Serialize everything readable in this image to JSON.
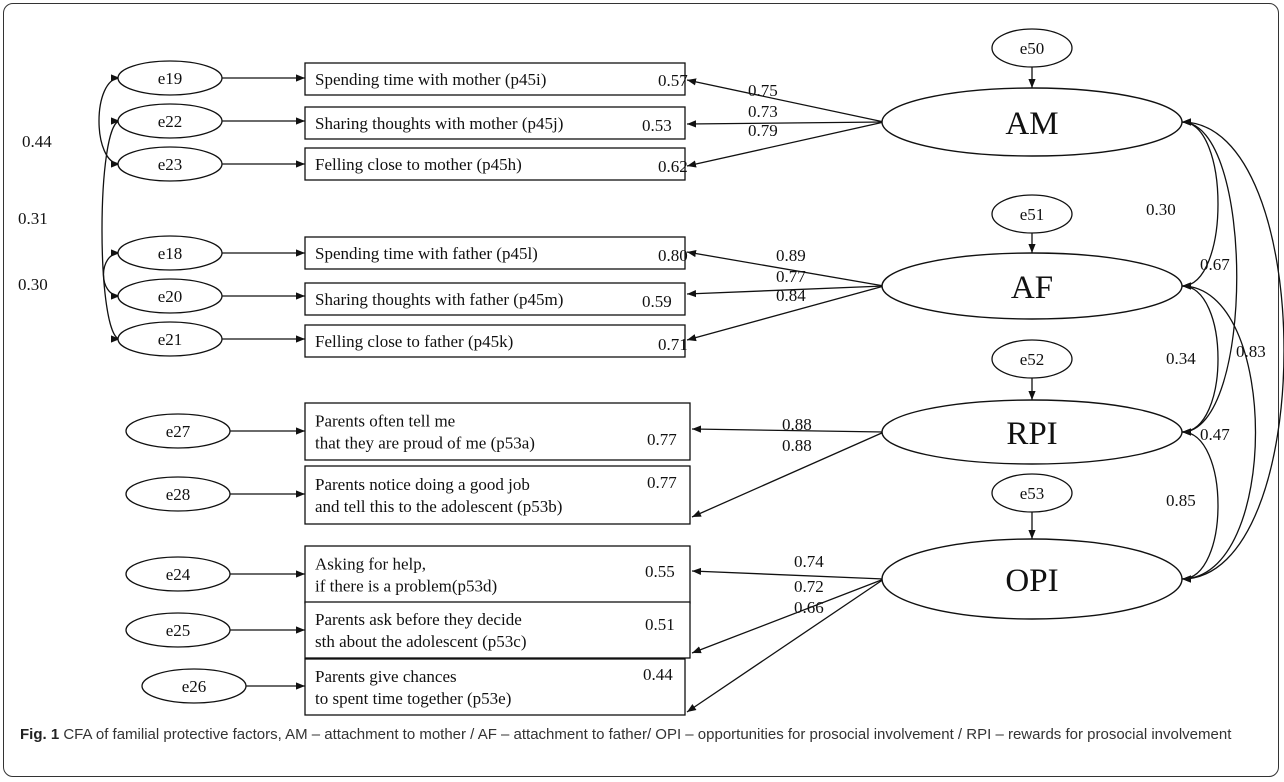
{
  "latents": [
    {
      "id": "AM",
      "label": "AM",
      "error": "e50"
    },
    {
      "id": "AF",
      "label": "AF",
      "error": "e51"
    },
    {
      "id": "RPI",
      "label": "RPI",
      "error": "e52"
    },
    {
      "id": "OPI",
      "label": "OPI",
      "error": "e53"
    }
  ],
  "indicators": [
    {
      "error": "e19",
      "lines": [
        "Spending time with mother (p45i)"
      ],
      "r2": "0.57",
      "loading": "0.75",
      "factor": "AM"
    },
    {
      "error": "e22",
      "lines": [
        "Sharing thoughts with mother (p45j)"
      ],
      "r2": "0.53",
      "loading": "0.73",
      "factor": "AM"
    },
    {
      "error": "e23",
      "lines": [
        "Felling  close to mother (p45h)"
      ],
      "r2": "0.62",
      "loading": "0.79",
      "factor": "AM"
    },
    {
      "error": "e18",
      "lines": [
        "Spending time with father (p45l)"
      ],
      "r2": "0.80",
      "loading": "0.89",
      "factor": "AF"
    },
    {
      "error": "e20",
      "lines": [
        "Sharing thoughts with father (p45m)"
      ],
      "r2": "0.59",
      "loading": "0.77",
      "factor": "AF"
    },
    {
      "error": "e21",
      "lines": [
        "Felling  close to father (p45k)"
      ],
      "r2": "0.71",
      "loading": "0.84",
      "factor": "AF"
    },
    {
      "error": "e27",
      "lines": [
        "Parents often tell me",
        "that they are proud of me (p53a)"
      ],
      "r2": "0.77",
      "loading": "0.88",
      "factor": "RPI"
    },
    {
      "error": "e28",
      "lines": [
        "Parents notice doing a good job",
        "and tell this to the adolescent (p53b)"
      ],
      "r2": "0.77",
      "loading": "0.88",
      "factor": "RPI"
    },
    {
      "error": "e24",
      "lines": [
        "Asking for help,",
        "if there is a problem(p53d)"
      ],
      "r2": "0.55",
      "loading": "0.74",
      "factor": "OPI"
    },
    {
      "error": "e25",
      "lines": [
        "Parents ask before they decide",
        "sth about the adolescent (p53c)"
      ],
      "r2": "0.51",
      "loading": "0.72",
      "factor": "OPI"
    },
    {
      "error": "e26",
      "lines": [
        "Parents give chances",
        "to spent time together (p53e)"
      ],
      "r2": "0.44",
      "loading": "0.66",
      "factor": "OPI"
    }
  ],
  "error_correlations": [
    {
      "from": "e19",
      "to": "e23",
      "value": "0.44"
    },
    {
      "from": "e22",
      "to": "e21",
      "value": "0.31"
    },
    {
      "from": "e18",
      "to": "e20",
      "value": "0.30"
    }
  ],
  "factor_correlations": [
    {
      "from": "AM",
      "to": "AF",
      "value": "0.30"
    },
    {
      "from": "AM",
      "to": "RPI",
      "value": "0.67"
    },
    {
      "from": "AM",
      "to": "OPI",
      "value": "0.83"
    },
    {
      "from": "AF",
      "to": "RPI",
      "value": "0.34"
    },
    {
      "from": "AF",
      "to": "OPI",
      "value": "0.47"
    },
    {
      "from": "RPI",
      "to": "OPI",
      "value": "0.85"
    }
  ],
  "caption": {
    "label": "Fig. 1",
    "text": "CFA of familial protective factors, AM – attachment to mother / AF – attachment to father/ OPI – opportunities for prosocial involvement / RPI – rewards for prosocial involvement"
  }
}
